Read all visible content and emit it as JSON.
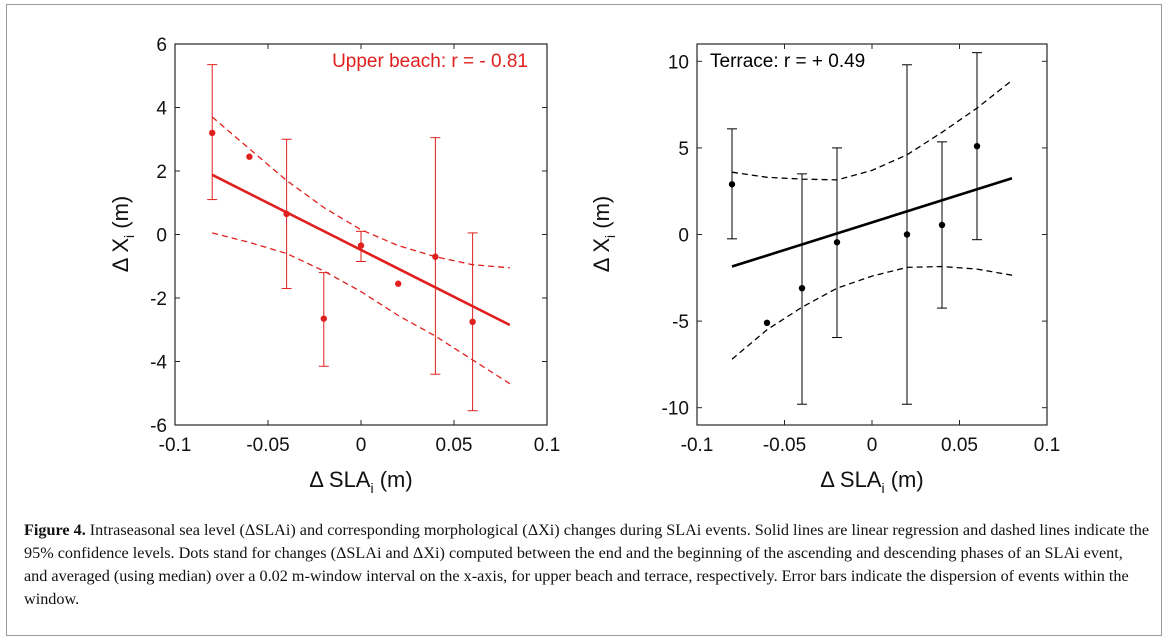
{
  "caption": {
    "label": "Figure 4.",
    "text": "Intraseasonal sea level (ΔSLAi) and corresponding morphological (ΔXi) changes during SLAi events. Solid lines are linear regression and dashed lines indicate the 95% confidence levels. Dots stand for changes (ΔSLAi and ΔXi) computed between the end and the beginning of the ascending and descending phases of an SLAi event, and averaged (using median) over a 0.02 m-window interval on the x-axis, for upper beach and terrace, respectively. Error bars indicate the dispersion of events within the window."
  },
  "chart_data": [
    {
      "type": "scatter",
      "panel": "upper-beach",
      "annotation": "Upper beach: r = - 0.81",
      "color": "#e0201e",
      "xlabel": "Δ SLA",
      "xlabel_sub": "i",
      "xlabel_unit": "(m)",
      "ylabel": "Δ X",
      "ylabel_sub": "i",
      "ylabel_unit": "(m)",
      "xlim": [
        -0.1,
        0.1
      ],
      "ylim": [
        -6,
        6
      ],
      "xticks": [
        -0.1,
        -0.05,
        0,
        0.05,
        0.1
      ],
      "xtick_labels": [
        "-0.1",
        "-0.05",
        "0",
        "0.05",
        "0.1"
      ],
      "yticks": [
        -6,
        -4,
        -2,
        0,
        2,
        4,
        6
      ],
      "ytick_labels": [
        "-6",
        "-4",
        "-2",
        "0",
        "2",
        "4",
        "6"
      ],
      "points": [
        {
          "x": -0.08,
          "y": 3.2,
          "err_low": 1.1,
          "err_high": 5.35
        },
        {
          "x": -0.06,
          "y": 2.45
        },
        {
          "x": -0.04,
          "y": 0.65,
          "err_low": -1.7,
          "err_high": 3.0
        },
        {
          "x": -0.02,
          "y": -2.65,
          "err_low": -4.15,
          "err_high": -1.2
        },
        {
          "x": 0.0,
          "y": -0.35,
          "err_low": -0.85,
          "err_high": 0.1
        },
        {
          "x": 0.02,
          "y": -1.55
        },
        {
          "x": 0.04,
          "y": -0.7,
          "err_low": -4.4,
          "err_high": 3.05
        },
        {
          "x": 0.06,
          "y": -2.75,
          "err_low": -5.55,
          "err_high": 0.05
        }
      ],
      "fit": {
        "x": [
          -0.08,
          0.08
        ],
        "y": [
          1.88,
          -2.85
        ]
      },
      "ci_upper": {
        "x": [
          -0.08,
          -0.06,
          -0.04,
          -0.02,
          0,
          0.02,
          0.04,
          0.06,
          0.08
        ],
        "y": [
          3.7,
          2.7,
          1.7,
          0.85,
          0.15,
          -0.35,
          -0.7,
          -0.95,
          -1.05
        ]
      },
      "ci_lower": {
        "x": [
          -0.08,
          -0.06,
          -0.04,
          -0.02,
          0,
          0.02,
          0.04,
          0.06,
          0.08
        ],
        "y": [
          0.05,
          -0.25,
          -0.6,
          -1.15,
          -1.8,
          -2.55,
          -3.2,
          -3.95,
          -4.7
        ]
      }
    },
    {
      "type": "scatter",
      "panel": "terrace",
      "annotation": "Terrace: r = + 0.49",
      "color": "#000000",
      "xlabel": "Δ SLA",
      "xlabel_sub": "i",
      "xlabel_unit": "(m)",
      "ylabel": "Δ X",
      "ylabel_sub": "i",
      "ylabel_unit": "(m)",
      "xlim": [
        -0.1,
        0.1
      ],
      "ylim": [
        -11,
        11
      ],
      "xticks": [
        -0.1,
        -0.05,
        0,
        0.05,
        0.1
      ],
      "xtick_labels": [
        "-0.1",
        "-0.05",
        "0",
        "0.05",
        "0.1"
      ],
      "yticks": [
        -10,
        -5,
        0,
        5,
        10
      ],
      "ytick_labels": [
        "-10",
        "-5",
        "0",
        "5",
        "10"
      ],
      "points": [
        {
          "x": -0.08,
          "y": 2.9,
          "err_low": -0.25,
          "err_high": 6.1
        },
        {
          "x": -0.06,
          "y": -5.1
        },
        {
          "x": -0.04,
          "y": -3.1,
          "err_low": -9.8,
          "err_high": 3.5
        },
        {
          "x": -0.02,
          "y": -0.45,
          "err_low": -5.95,
          "err_high": 5.0
        },
        {
          "x": 0.02,
          "y": 0.0,
          "err_low": -9.8,
          "err_high": 9.8
        },
        {
          "x": 0.04,
          "y": 0.55,
          "err_low": -4.25,
          "err_high": 5.35
        },
        {
          "x": 0.06,
          "y": 5.1,
          "err_low": -0.3,
          "err_high": 10.5
        }
      ],
      "fit": {
        "x": [
          -0.08,
          0.08
        ],
        "y": [
          -1.85,
          3.25
        ]
      },
      "ci_upper": {
        "x": [
          -0.08,
          -0.06,
          -0.04,
          -0.02,
          0,
          0.02,
          0.04,
          0.06,
          0.08
        ],
        "y": [
          3.6,
          3.3,
          3.2,
          3.15,
          3.7,
          4.6,
          5.9,
          7.3,
          8.9
        ]
      },
      "ci_lower": {
        "x": [
          -0.08,
          -0.06,
          -0.04,
          -0.02,
          0,
          0.02,
          0.04,
          0.06,
          0.08
        ],
        "y": [
          -7.2,
          -5.5,
          -4.2,
          -3.1,
          -2.4,
          -1.9,
          -1.85,
          -2.0,
          -2.35
        ]
      }
    }
  ]
}
